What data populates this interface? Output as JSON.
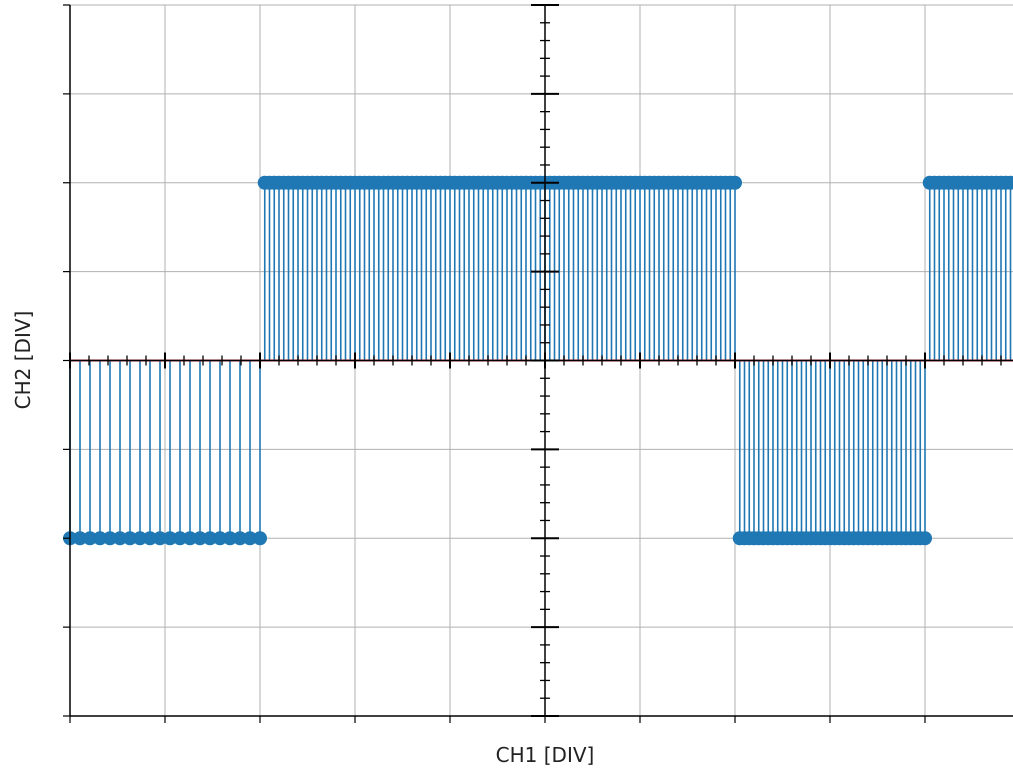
{
  "chart_data": {
    "type": "stem",
    "xlabel": "CH1 [DIV]",
    "ylabel": "CH2 [DIV]",
    "xlim": [
      -5,
      5
    ],
    "ylim": [
      -4,
      4
    ],
    "grid": true,
    "x_tick_labels_shown": false,
    "y_tick_labels_shown": false,
    "baseline": 0,
    "series": [
      {
        "color": "#1f77b4",
        "segments": [
          {
            "x_start": -5.0,
            "x_end": -3.0,
            "y": -2,
            "count": 20
          },
          {
            "x_start": -2.95,
            "x_end": 2.0,
            "y": 2,
            "count": 100
          },
          {
            "x_start": 2.05,
            "x_end": 4.0,
            "y": -2,
            "count": 40
          },
          {
            "x_start": 4.05,
            "x_end": 5.0,
            "y": 2,
            "count": 20
          }
        ]
      }
    ],
    "baseline_color": "#d62728",
    "grid_color": "#b0b0b0"
  }
}
